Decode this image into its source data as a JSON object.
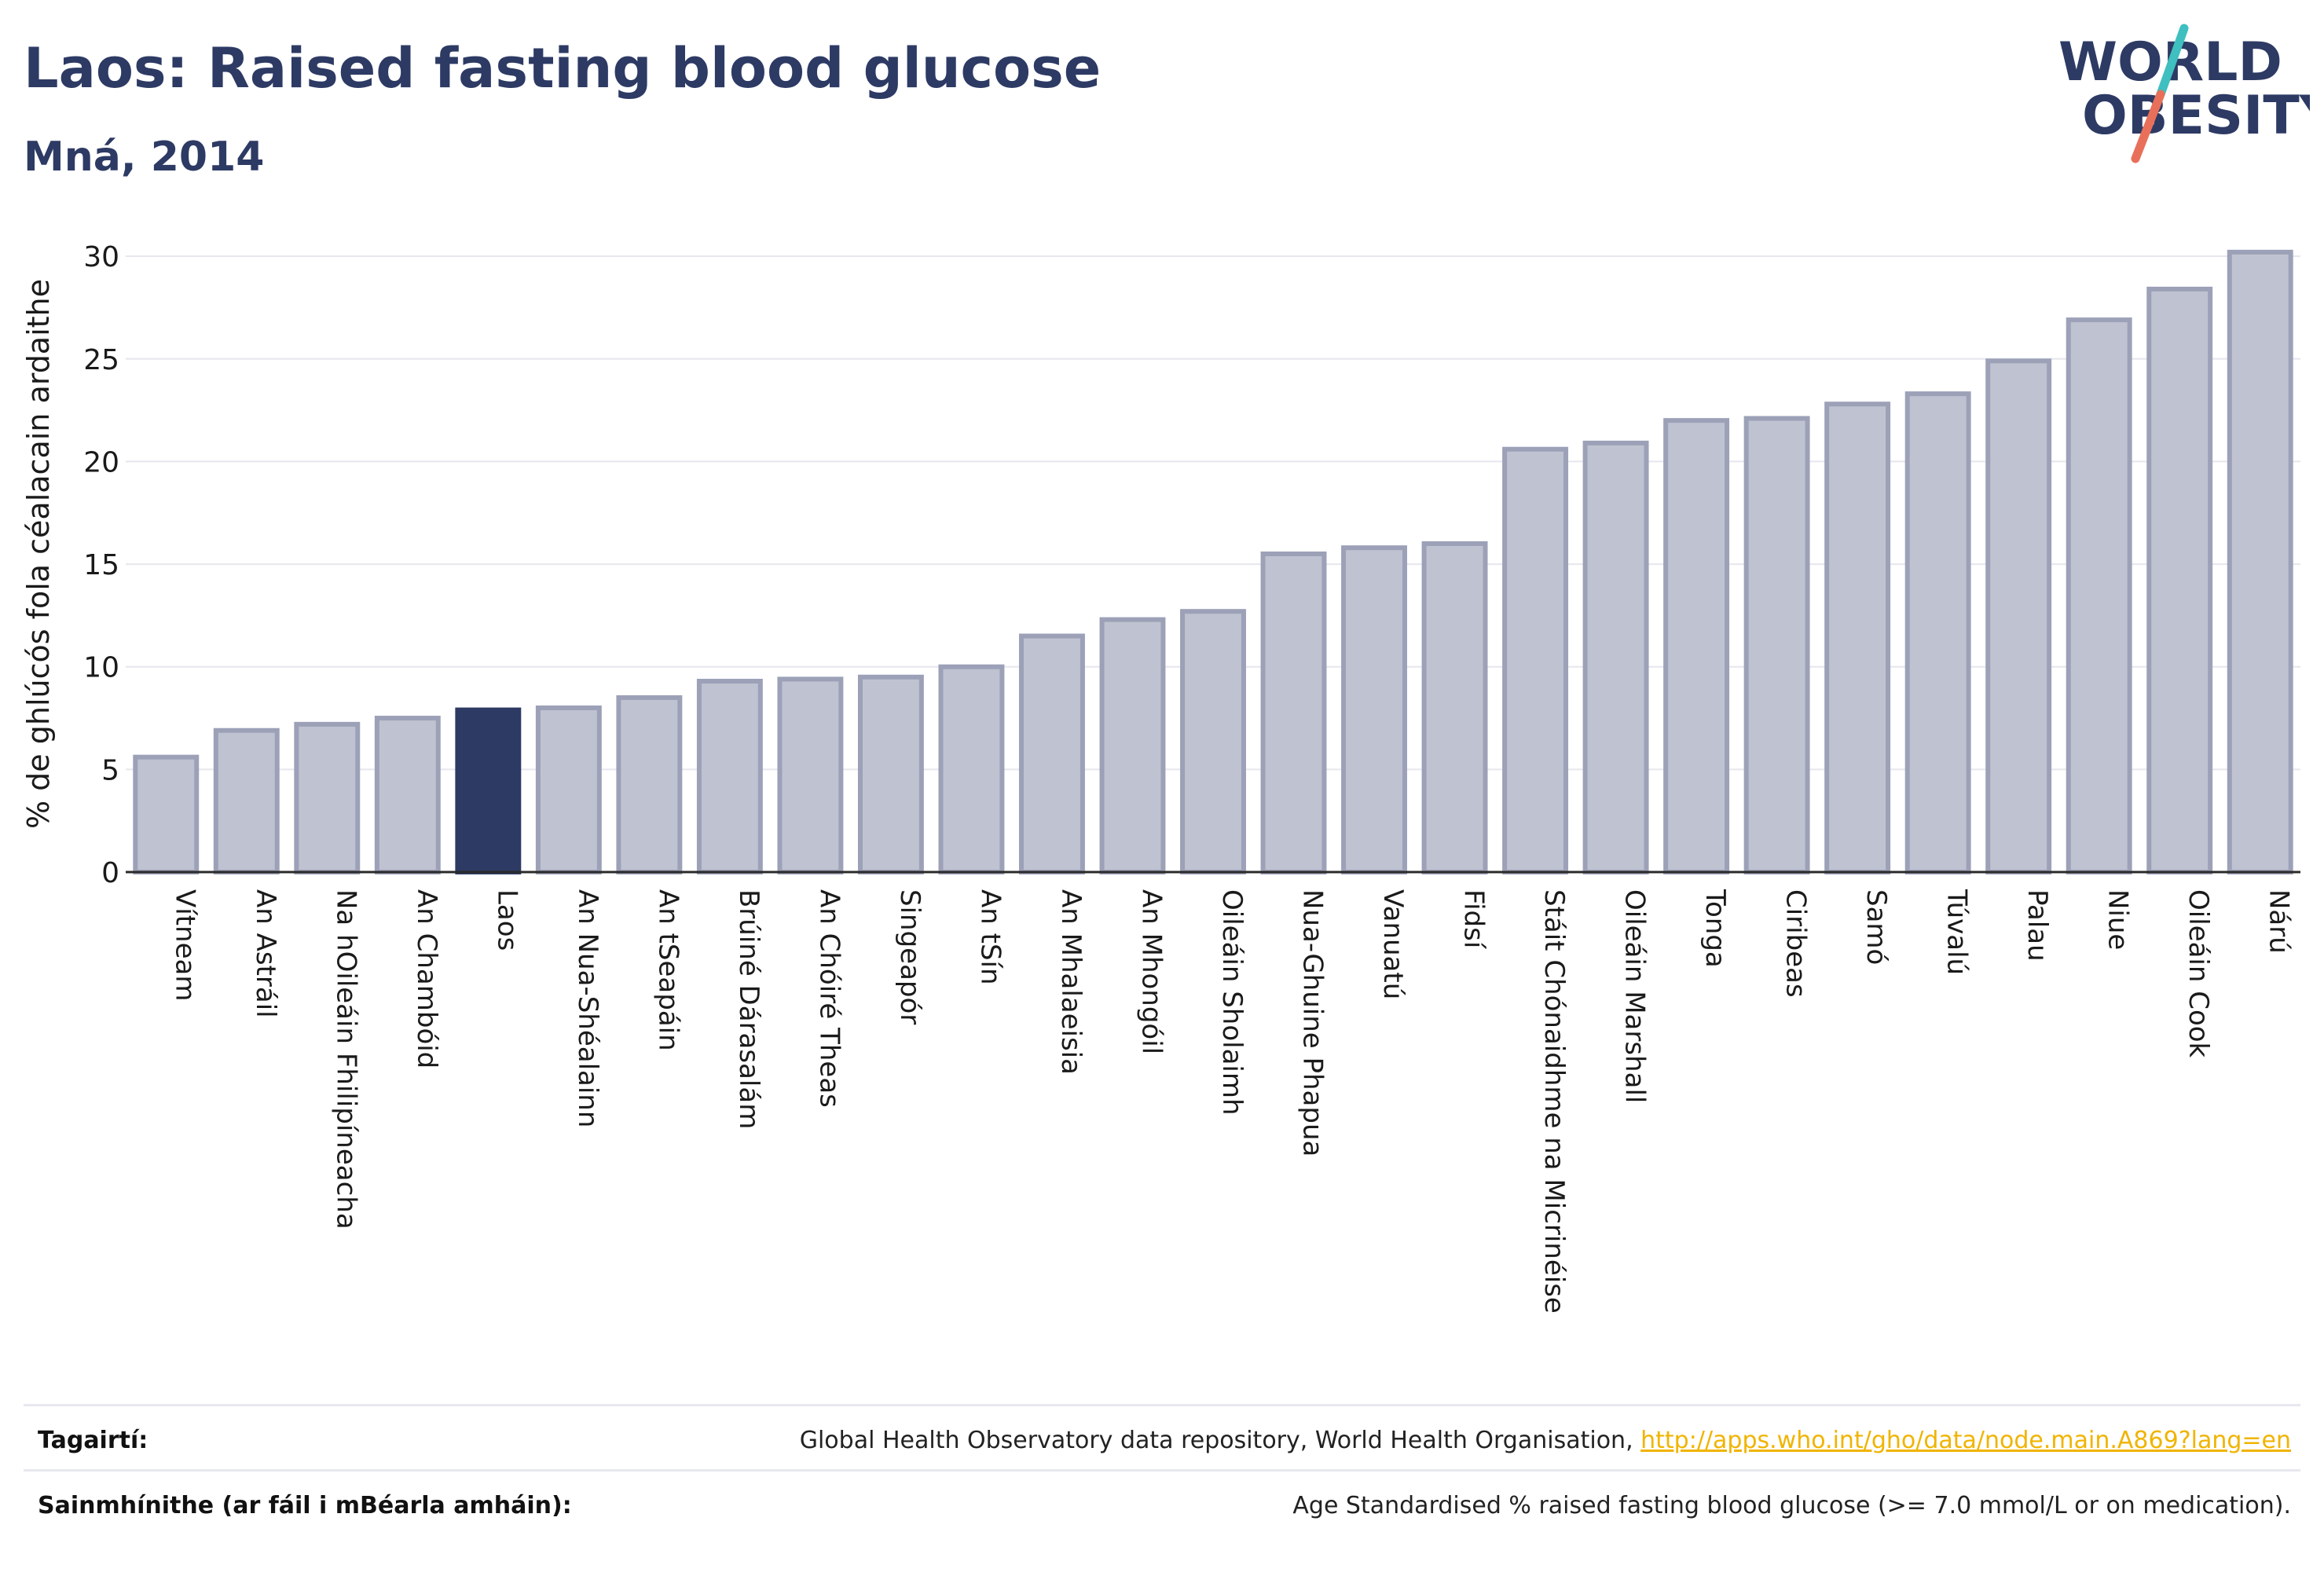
{
  "header": {
    "title": "Laos: Raised fasting blood glucose",
    "subtitle": "Mná, 2014"
  },
  "logo": {
    "line1": "WORLD",
    "line2": "OBESITY"
  },
  "colors": {
    "highlight": "#2d3a64",
    "bar_fill": "#bfc2d0",
    "bar_stroke": "#9ca1b8",
    "grid": "#e6e6ee",
    "logo_slash_top": "#3fbfbf",
    "logo_slash_bottom": "#e8705a"
  },
  "chart_data": {
    "type": "bar",
    "title": "Laos: Raised fasting blood glucose",
    "subtitle": "Mná, 2014",
    "xlabel": "",
    "ylabel": "% de ghlúcós fola céalacain ardaithe",
    "ylim": [
      0,
      31
    ],
    "yticks": [
      0,
      5,
      10,
      15,
      20,
      25,
      30
    ],
    "grid": true,
    "highlight_category": "Laos",
    "categories": [
      "Vítneam",
      "An Astráil",
      "Na hOileáin Fhilipíneacha",
      "An Chambóid",
      "Laos",
      "An Nua-Shéalainn",
      "An tSeapáin",
      "Brúiné Dárasalám",
      "An Chóiré Theas",
      "Singeapór",
      "An tSín",
      "An Mhalaeisia",
      "An Mhongóil",
      "Oileáin Sholaimh",
      "Nua-Ghuine Phapua",
      "Vanuatú",
      "Fidsí",
      "Stáit Chónaidhme na Micrinéise",
      "Oileáin Marshall",
      "Tonga",
      "Ciribeas",
      "Samó",
      "Túvalú",
      "Palau",
      "Niue",
      "Oileáin Cook",
      "Nárú"
    ],
    "values": [
      5.6,
      6.9,
      7.2,
      7.5,
      7.9,
      8.0,
      8.5,
      9.3,
      9.4,
      9.5,
      10.0,
      11.5,
      12.3,
      12.7,
      15.5,
      15.8,
      16.0,
      20.6,
      20.9,
      22.0,
      22.1,
      22.8,
      23.3,
      24.9,
      26.9,
      28.4,
      30.2
    ]
  },
  "footer": {
    "references_label": "Tagairtí:",
    "references_text": "Global Health Observatory data repository, World Health Organisation, ",
    "references_link": "http://apps.who.int/gho/data/node.main.A869?lang=en",
    "definitions_label": "Sainmhínithe (ar fáil i mBéarla amháin):",
    "definitions_text": "Age Standardised % raised fasting blood glucose (>= 7.0 mmol/L or on medication)."
  }
}
